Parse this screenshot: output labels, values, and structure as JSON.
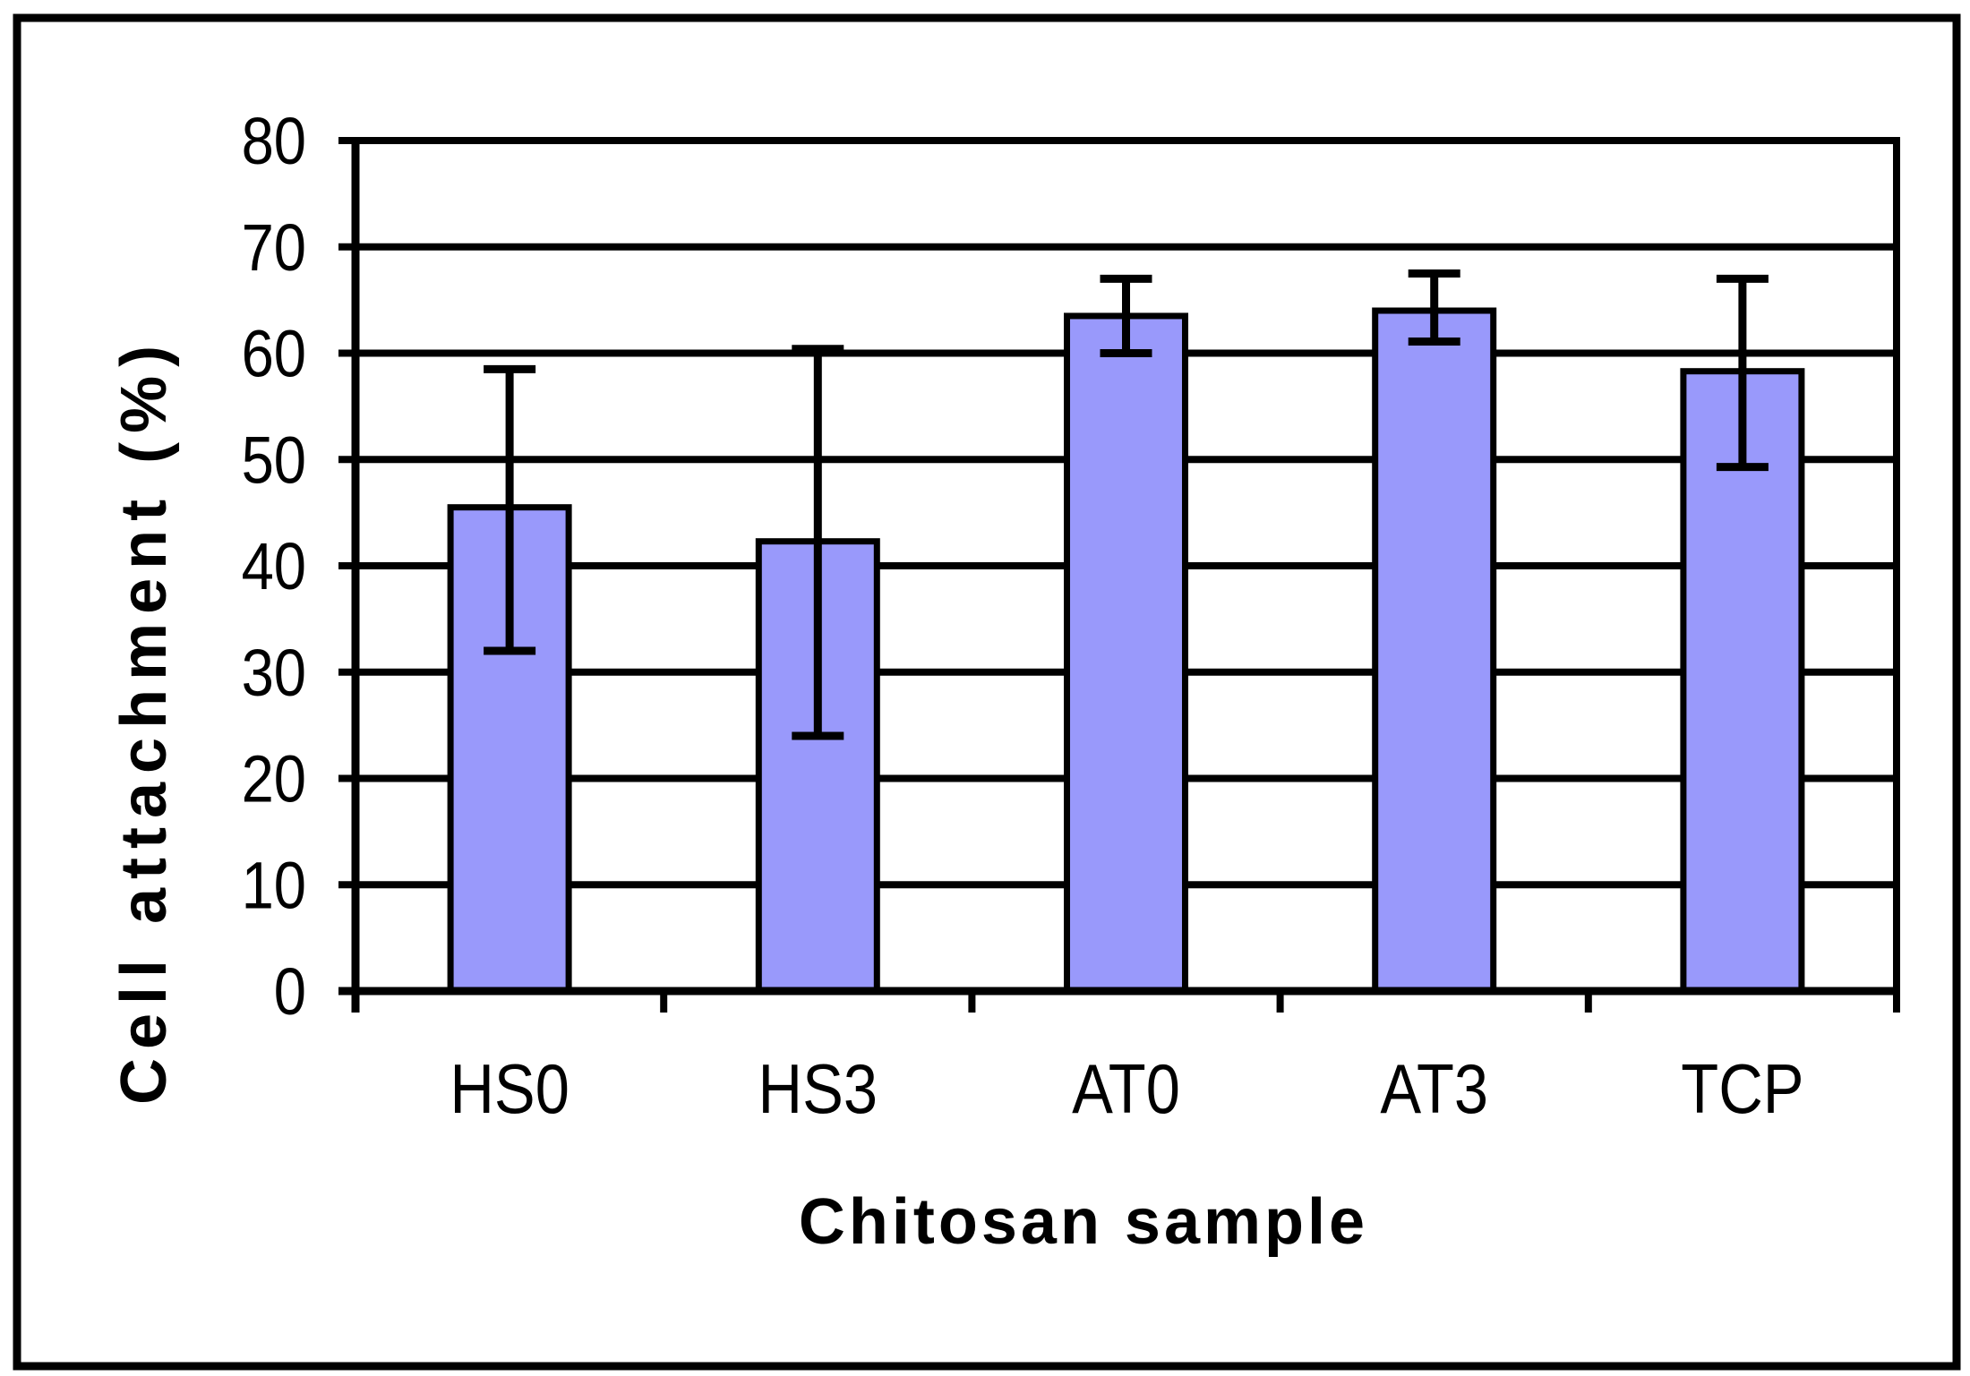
{
  "figure": {
    "background": "#ffffff",
    "line_color": "#000000",
    "bar_fill": "#9999fb",
    "bar_stroke": "#000000"
  },
  "chart_data": {
    "type": "bar",
    "title": "",
    "xlabel": "Chitosan sample",
    "ylabel": "Cell attachment (%)",
    "categories": [
      "HS0",
      "HS3",
      "AT0",
      "AT3",
      "TCP"
    ],
    "values": [
      45.5,
      42.3,
      63.5,
      64.0,
      58.3
    ],
    "error_upper": [
      58.5,
      60.4,
      67.0,
      67.5,
      67.0
    ],
    "error_lower": [
      32.0,
      24.0,
      60.0,
      61.1,
      49.3
    ],
    "ylim": [
      0,
      80
    ],
    "yticks": [
      0,
      10,
      20,
      30,
      40,
      50,
      60,
      70,
      80
    ],
    "grid": true,
    "legend_position": "none"
  }
}
